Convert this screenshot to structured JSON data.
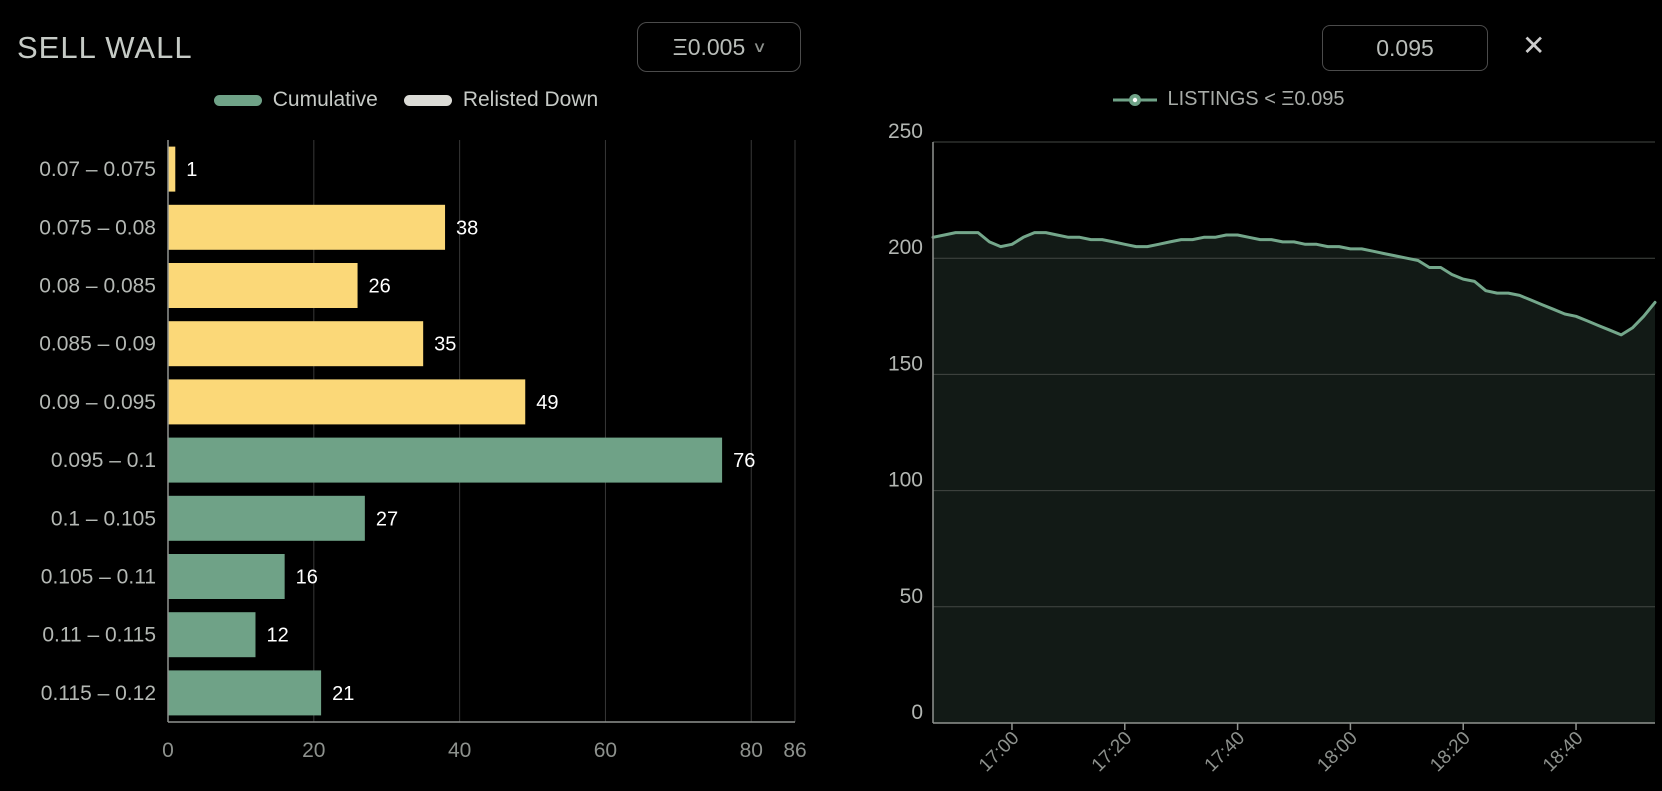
{
  "header": {
    "title": "SELL WALL",
    "price_step_dropdown": {
      "value": "Ξ0.005",
      "chevron_icon": "∨"
    },
    "threshold_input": {
      "value": "0.095"
    },
    "close_icon": "✕"
  },
  "colors": {
    "background": "#000000",
    "cumulative_green": "#6FA287",
    "relisted_light": "#DBDBD6",
    "below_threshold_yellow": "#FBD878",
    "line_green": "#74A78B",
    "axis_line": "#8F938F",
    "gridline_left": "#383838",
    "gridline_right": "#434743",
    "category_text": "#B4B8B4",
    "tick_text": "#8D918D",
    "ytick_text": "#B2B6B2",
    "value_label": "#FFFFFF"
  },
  "chart_data": [
    {
      "type": "bar",
      "orientation": "horizontal",
      "legend": [
        {
          "label": "Cumulative",
          "color": "#6FA287"
        },
        {
          "label": "Relisted Down",
          "color": "#DBDBD6"
        }
      ],
      "categories": [
        "0.07 – 0.075",
        "0.075 – 0.08",
        "0.08 – 0.085",
        "0.085 – 0.09",
        "0.09 – 0.095",
        "0.095 – 0.1",
        "0.1 – 0.105",
        "0.105 – 0.11",
        "0.11 – 0.115",
        "0.115 – 0.12"
      ],
      "values": [
        1,
        38,
        26,
        35,
        49,
        76,
        27,
        16,
        12,
        21
      ],
      "bar_colors": [
        "#FBD878",
        "#FBD878",
        "#FBD878",
        "#FBD878",
        "#FBD878",
        "#6FA287",
        "#6FA287",
        "#6FA287",
        "#6FA287",
        "#6FA287"
      ],
      "xlim": [
        0,
        86
      ],
      "xticks": [
        0,
        20,
        40,
        60,
        80,
        86
      ],
      "grid": "vertical",
      "value_labels": true
    },
    {
      "type": "line",
      "legend": [
        {
          "label": "LISTINGS < Ξ0.095",
          "color": "#6FA287"
        }
      ],
      "x": [
        "16:46",
        "16:48",
        "16:50",
        "16:52",
        "16:54",
        "16:56",
        "16:58",
        "17:00",
        "17:02",
        "17:04",
        "17:06",
        "17:08",
        "17:10",
        "17:12",
        "17:14",
        "17:16",
        "17:18",
        "17:20",
        "17:22",
        "17:24",
        "17:26",
        "17:28",
        "17:30",
        "17:32",
        "17:34",
        "17:36",
        "17:38",
        "17:40",
        "17:42",
        "17:44",
        "17:46",
        "17:48",
        "17:50",
        "17:52",
        "17:54",
        "17:56",
        "17:58",
        "18:00",
        "18:02",
        "18:04",
        "18:06",
        "18:08",
        "18:10",
        "18:12",
        "18:14",
        "18:16",
        "18:18",
        "18:20",
        "18:22",
        "18:24",
        "18:26",
        "18:28",
        "18:30",
        "18:32",
        "18:34",
        "18:36",
        "18:38",
        "18:40",
        "18:42",
        "18:44",
        "18:46",
        "18:48",
        "18:50",
        "18:52",
        "18:54"
      ],
      "values": [
        209,
        210,
        211,
        211,
        211,
        207,
        205,
        206,
        209,
        211,
        211,
        210,
        209,
        209,
        208,
        208,
        207,
        206,
        205,
        205,
        206,
        207,
        208,
        208,
        209,
        209,
        210,
        210,
        209,
        208,
        208,
        207,
        207,
        206,
        206,
        205,
        205,
        204,
        204,
        203,
        202,
        201,
        200,
        199,
        196,
        196,
        193,
        191,
        190,
        186,
        185,
        185,
        184,
        182,
        180,
        178,
        176,
        175,
        173,
        171,
        169,
        167,
        170,
        175,
        181
      ],
      "ylim": [
        0,
        250
      ],
      "yticks": [
        0,
        50,
        100,
        150,
        200,
        250
      ],
      "xticks": [
        "17:00",
        "17:20",
        "17:40",
        "18:00",
        "18:20",
        "18:40"
      ],
      "area": true,
      "grid": "horizontal",
      "marker": "circle"
    }
  ]
}
